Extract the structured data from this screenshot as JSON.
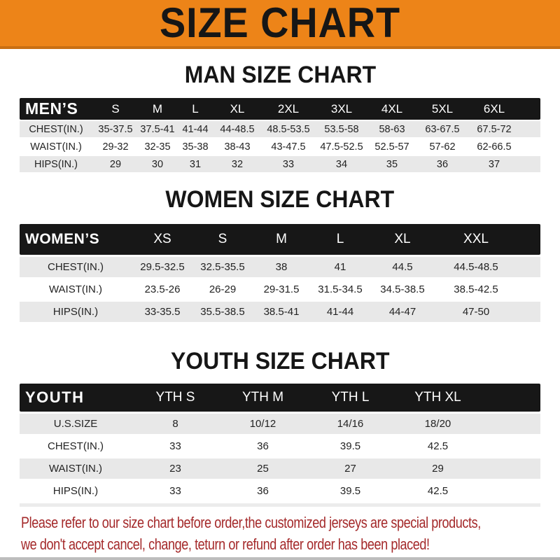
{
  "banner": {
    "title": "SIZE CHART",
    "bg_color": "#ed8418",
    "edge_color": "#c96f12"
  },
  "colors": {
    "header_bar": "#171717",
    "row_shade": "#e8e8e8",
    "footer_text": "#a4292a"
  },
  "chart_data": [
    {
      "type": "table",
      "title": "MAN SIZE CHART",
      "corner_label": "MEN’S",
      "columns": [
        "S",
        "M",
        "L",
        "XL",
        "2XL",
        "3XL",
        "4XL",
        "5XL",
        "6XL"
      ],
      "rows": [
        {
          "label": "CHEST(IN.)",
          "values": [
            "35-37.5",
            "37.5-41",
            "41-44",
            "44-48.5",
            "48.5-53.5",
            "53.5-58",
            "58-63",
            "63-67.5",
            "67.5-72"
          ]
        },
        {
          "label": "WAIST(IN.)",
          "values": [
            "29-32",
            "32-35",
            "35-38",
            "38-43",
            "43-47.5",
            "47.5-52.5",
            "52.5-57",
            "57-62",
            "62-66.5"
          ]
        },
        {
          "label": "HIPS(IN.)",
          "values": [
            "29",
            "30",
            "31",
            "32",
            "33",
            "34",
            "35",
            "36",
            "37"
          ]
        }
      ]
    },
    {
      "type": "table",
      "title": "WOMEN SIZE CHART",
      "corner_label": "WOMEN’S",
      "columns": [
        "XS",
        "S",
        "M",
        "L",
        "XL",
        "XXL"
      ],
      "rows": [
        {
          "label": "CHEST(IN.)",
          "values": [
            "29.5-32.5",
            "32.5-35.5",
            "38",
            "41",
            "44.5",
            "44.5-48.5"
          ]
        },
        {
          "label": "WAIST(IN.)",
          "values": [
            "23.5-26",
            "26-29",
            "29-31.5",
            "31.5-34.5",
            "34.5-38.5",
            "38.5-42.5"
          ]
        },
        {
          "label": "HIPS(IN.)",
          "values": [
            "33-35.5",
            "35.5-38.5",
            "38.5-41",
            "41-44",
            "44-47",
            "47-50"
          ]
        }
      ]
    },
    {
      "type": "table",
      "title": "YOUTH SIZE CHART",
      "corner_label": "YOUTH",
      "columns": [
        "YTH S",
        "YTH M",
        "YTH L",
        "YTH XL"
      ],
      "rows": [
        {
          "label": "U.S.SIZE",
          "values": [
            "8",
            "10/12",
            "14/16",
            "18/20"
          ]
        },
        {
          "label": "CHEST(IN.)",
          "values": [
            "33",
            "36",
            "39.5",
            "42.5"
          ]
        },
        {
          "label": "WAIST(IN.)",
          "values": [
            "23",
            "25",
            "27",
            "29"
          ]
        },
        {
          "label": "HIPS(IN.)",
          "values": [
            "33",
            "36",
            "39.5",
            "42.5"
          ]
        }
      ]
    }
  ],
  "footer": {
    "line1": "Please refer to our size chart before order,the customized jerseys are special products,",
    "line2": "we don't accept cancel, change, teturn or refund after order has been placed!"
  }
}
